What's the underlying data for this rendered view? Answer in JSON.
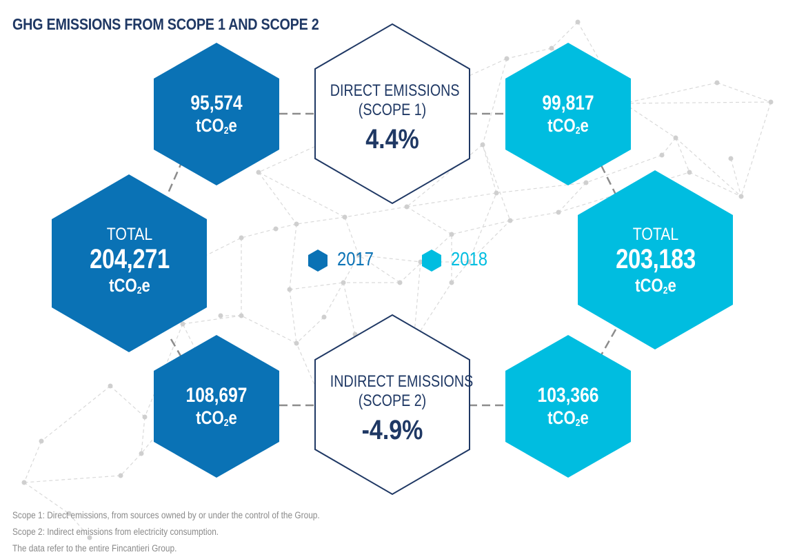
{
  "title": "GHG EMISSIONS FROM SCOPE 1 AND SCOPE 2",
  "colors": {
    "y2017": "#0a72b5",
    "y2018": "#00bde0",
    "title": "#1f3864",
    "outline": "#1f3864",
    "connector": "#8c8c8c",
    "network": "#d9d9d9",
    "notes": "#8a8a8a"
  },
  "scope1": {
    "label_line1": "DIRECT EMISSIONS",
    "label_line2": "(SCOPE 1)",
    "change": "4.4%",
    "value_2017": "95,574",
    "value_2018": "99,817"
  },
  "scope2": {
    "label_line1": "INDIRECT EMISSIONS",
    "label_line2": "(SCOPE 2)",
    "change": "-4.9%",
    "value_2017": "108,697",
    "value_2018": "103,366"
  },
  "total": {
    "label": "TOTAL",
    "value_2017": "204,271",
    "value_2018": "203,183"
  },
  "unit": {
    "prefix": "tCO",
    "sub": "2",
    "suffix": "e"
  },
  "legend": [
    {
      "label": "2017",
      "color": "#0a72b5"
    },
    {
      "label": "2018",
      "color": "#00bde0"
    }
  ],
  "notes": [
    "Scope 1: Direct emissions, from sources owned by or under the control of the Group.",
    "Scope 2: Indirect emissions from electricity consumption.",
    "The data refer to the entire Fincantieri Group."
  ]
}
